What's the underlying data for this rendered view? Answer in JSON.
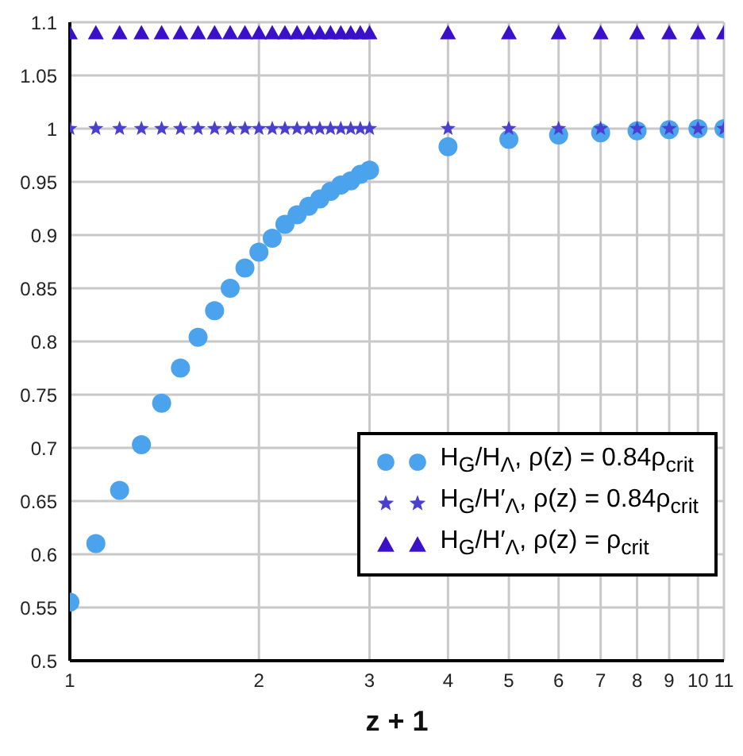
{
  "chart_data": {
    "type": "scatter",
    "xlabel": "z + 1",
    "log": "x",
    "xlim": [
      1,
      11
    ],
    "xticks": [
      1,
      2,
      3,
      4,
      5,
      6,
      7,
      8,
      9,
      10,
      11
    ],
    "ylim": [
      0.5,
      1.1
    ],
    "yticks": [
      0.5,
      0.55,
      0.6,
      0.65,
      0.7,
      0.75,
      0.8,
      0.85,
      0.9,
      0.95,
      1,
      1.05,
      1.1
    ],
    "grid": true,
    "legend": "bottom right",
    "x": [
      1,
      1.1,
      1.2,
      1.3,
      1.4,
      1.5,
      1.6,
      1.7,
      1.8,
      1.9,
      2,
      2.1,
      2.2,
      2.3,
      2.4,
      2.5,
      2.6,
      2.7,
      2.8,
      2.9,
      3,
      4,
      5,
      6,
      7,
      8,
      9,
      10,
      11
    ],
    "series": [
      {
        "name": "H$_{G}$/H$_{Λ}$,  ρ(z) = 0.84ρ$_{crit}$",
        "color": "#4aa3ec",
        "marker": "circle",
        "values": [
          0.555,
          0.61,
          0.66,
          0.703,
          0.742,
          0.775,
          0.804,
          0.829,
          0.85,
          0.869,
          0.884,
          0.897,
          0.91,
          0.919,
          0.927,
          0.934,
          0.941,
          0.947,
          0.951,
          0.957,
          0.961,
          0.983,
          0.99,
          0.994,
          0.996,
          0.998,
          0.999,
          1,
          1
        ]
      },
      {
        "name": "H$_{G}$/H′$_{Λ}$,  ρ(z) = 0.84ρ$_{crit}$",
        "color": "#4b3fcf",
        "marker": "star",
        "values": [
          1,
          1,
          1,
          1,
          1,
          1,
          1,
          1,
          1,
          1,
          1,
          1,
          1,
          1,
          1,
          1,
          1,
          1,
          1,
          1,
          1,
          1,
          1,
          1,
          1,
          1,
          1,
          1,
          1
        ]
      },
      {
        "name": "H$_{G}$/H′$_{Λ}$,  ρ(z) = ρ$_{crit}$",
        "color": "#3a10c8",
        "marker": "triangle",
        "values": [
          1.09,
          1.09,
          1.09,
          1.09,
          1.09,
          1.09,
          1.09,
          1.09,
          1.09,
          1.09,
          1.09,
          1.09,
          1.09,
          1.09,
          1.09,
          1.09,
          1.09,
          1.09,
          1.09,
          1.09,
          1.09,
          1.09,
          1.09,
          1.09,
          1.09,
          1.09,
          1.09,
          1.09,
          1.09
        ]
      }
    ]
  }
}
